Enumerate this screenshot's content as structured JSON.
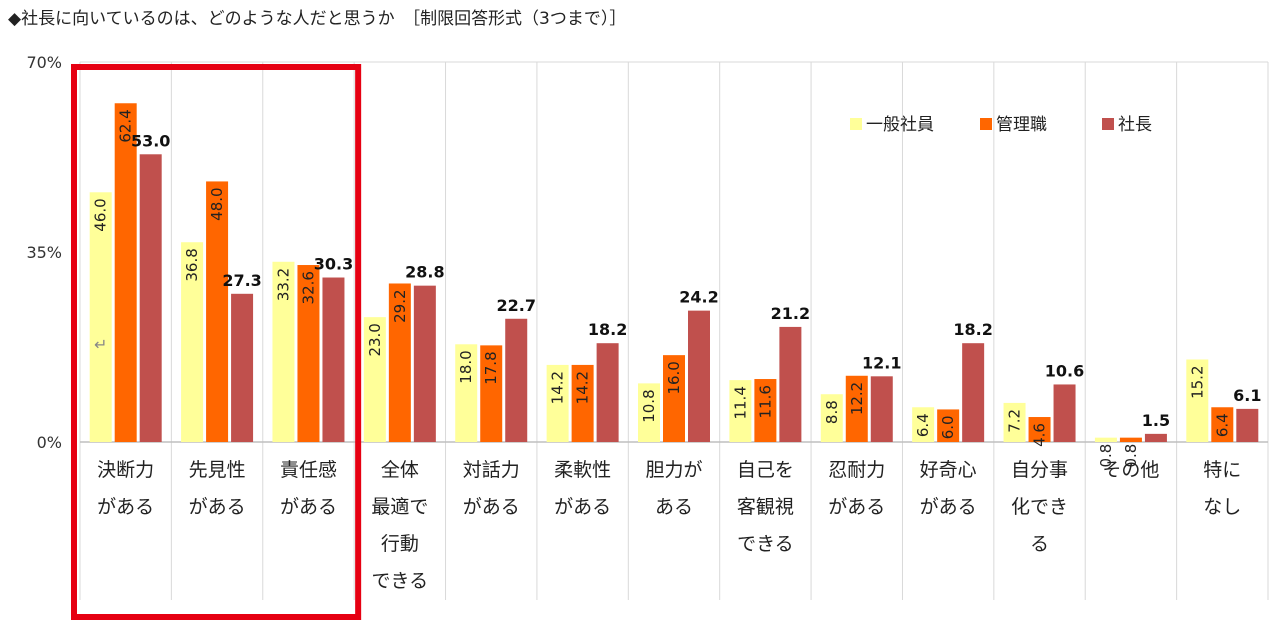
{
  "chart_data": {
    "type": "bar",
    "title": "◆社長に向いているのは、どのような人だと思うか　［制限回答形式（3つまで）］",
    "ylim": [
      0,
      70
    ],
    "yticks": [
      {
        "value": 0,
        "label": "0%"
      },
      {
        "value": 35,
        "label": "35%"
      },
      {
        "value": 70,
        "label": "70%"
      }
    ],
    "categories": [
      [
        "決断力",
        "がある"
      ],
      [
        "先見性",
        "がある"
      ],
      [
        "責任感",
        "がある"
      ],
      [
        "全体",
        "最適で",
        "行動",
        "できる"
      ],
      [
        "対話力",
        "がある"
      ],
      [
        "柔軟性",
        "がある"
      ],
      [
        "胆力が",
        "ある"
      ],
      [
        "自己を",
        "客観視",
        "できる"
      ],
      [
        "忍耐力",
        "がある"
      ],
      [
        "好奇心",
        "がある"
      ],
      [
        "自分事",
        "化でき",
        "る"
      ],
      [
        "その他"
      ],
      [
        "特に",
        "なし"
      ]
    ],
    "series": [
      {
        "name": "一般社員",
        "color": "#FFFF99",
        "values": [
          46.0,
          36.8,
          33.2,
          23.0,
          18.0,
          14.2,
          10.8,
          11.4,
          8.8,
          6.4,
          7.2,
          0.8,
          15.2
        ]
      },
      {
        "name": "管理職",
        "color": "#FF6600",
        "values": [
          62.4,
          48.0,
          32.6,
          29.2,
          17.8,
          14.2,
          16.0,
          11.6,
          12.2,
          6.0,
          4.6,
          0.8,
          6.4
        ]
      },
      {
        "name": "社長",
        "color": "#C0504D",
        "values": [
          53.0,
          27.3,
          30.3,
          28.8,
          22.7,
          18.2,
          24.2,
          21.2,
          12.1,
          18.2,
          10.6,
          1.5,
          6.1
        ]
      }
    ],
    "highlight": {
      "color": "#E60012",
      "categories": [
        0,
        1,
        2
      ]
    },
    "legend_position": "top-right",
    "annotation": "↵"
  }
}
